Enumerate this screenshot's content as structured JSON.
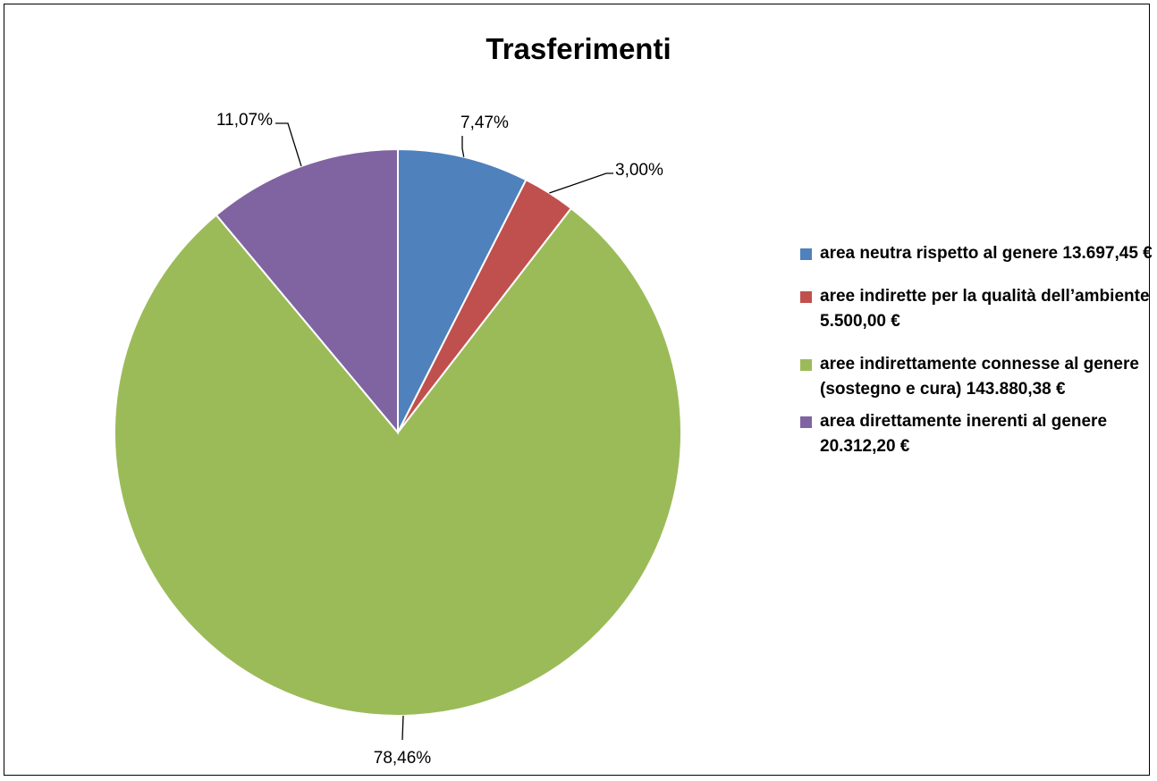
{
  "chart_data": {
    "type": "pie",
    "title": "Trasferimenti",
    "categories": [
      "area neutra rispetto al genere  13.697,45 €",
      "aree indirette per la qualità dell’ambiente  5.500,00 €",
      "aree indirettamente connesse al genere (sostegno e cura) 143.880,38 €",
      "area direttamente inerenti al genere  20.312,20 €"
    ],
    "values": [
      7.47,
      3.0,
      78.46,
      11.07
    ],
    "data_labels": [
      "7,47%",
      "3,00%",
      "78,46%",
      "11,07%"
    ],
    "colors": [
      "#4F81BD",
      "#C0504D",
      "#9BBB59",
      "#8064A2"
    ],
    "legend_position": "right"
  }
}
